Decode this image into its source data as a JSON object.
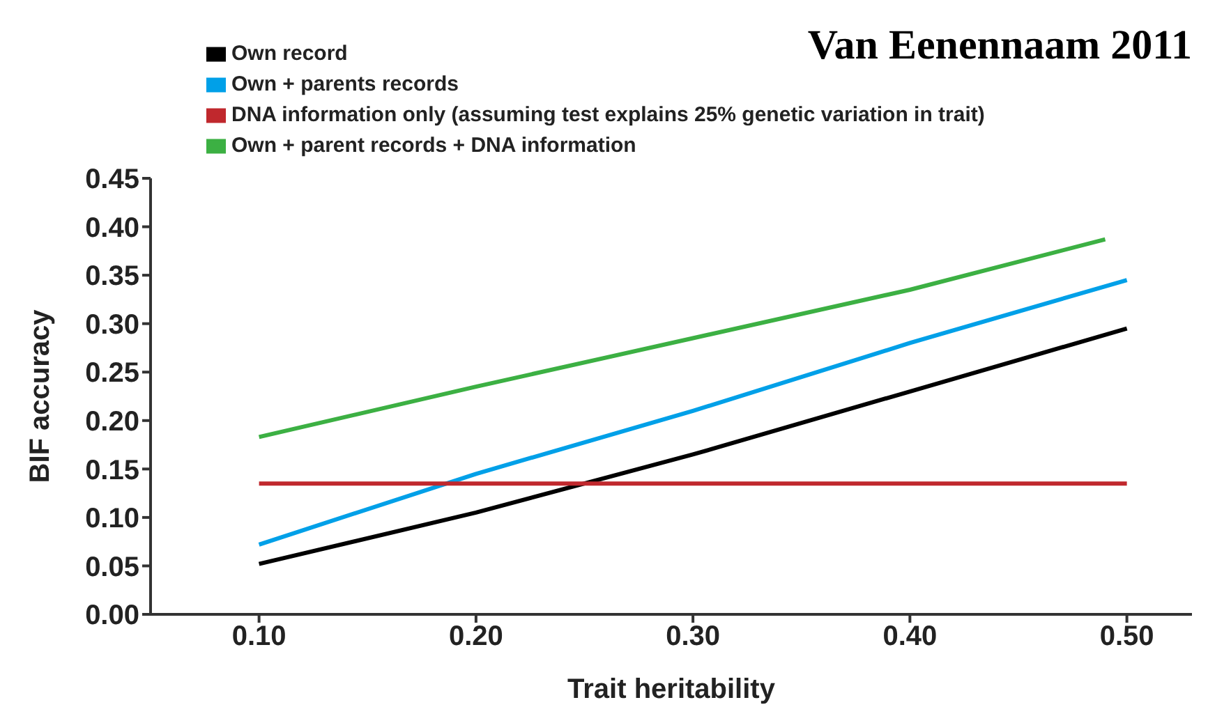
{
  "chart_data": {
    "type": "line",
    "title": "Van Eenennaam  2011",
    "xlabel": "Trait heritability",
    "ylabel": "BIF accuracy",
    "x": [
      0.1,
      0.2,
      0.3,
      0.4,
      0.5
    ],
    "series": [
      {
        "name": "Own record",
        "color": "#000000",
        "values": [
          0.052,
          0.105,
          0.165,
          0.23,
          0.295
        ]
      },
      {
        "name": "Own + parents records",
        "color": "#00a0e8",
        "values": [
          0.072,
          0.145,
          0.21,
          0.28,
          0.345
        ]
      },
      {
        "name": "DNA information only (assuming test explains 25% genetic variation in trait)",
        "color": "#c0282d",
        "values": [
          0.135,
          0.135,
          0.135,
          0.135,
          0.135
        ]
      },
      {
        "name": "Own + parent records + DNA information",
        "color": "#3cb043",
        "x": [
          0.1,
          0.2,
          0.3,
          0.4,
          0.49
        ],
        "values": [
          0.183,
          0.235,
          0.285,
          0.335,
          0.387
        ]
      }
    ],
    "xlim": [
      0.05,
      0.53
    ],
    "xticks": [
      {
        "value": 0.1,
        "label": "0.10"
      },
      {
        "value": 0.2,
        "label": "0.20"
      },
      {
        "value": 0.3,
        "label": "0.30"
      },
      {
        "value": 0.4,
        "label": "0.40"
      },
      {
        "value": 0.5,
        "label": "0.50"
      }
    ],
    "ylim": [
      0,
      0.45
    ],
    "yticks": [
      {
        "value": 0,
        "label": "0.00"
      },
      {
        "value": 0.05,
        "label": "0.05"
      },
      {
        "value": 0.1,
        "label": "0.10"
      },
      {
        "value": 0.15,
        "label": "0.15"
      },
      {
        "value": 0.2,
        "label": "0.20"
      },
      {
        "value": 0.25,
        "label": "0.25"
      },
      {
        "value": 0.3,
        "label": "0.30"
      },
      {
        "value": 0.35,
        "label": "0.35"
      },
      {
        "value": 0.4,
        "label": "0.40"
      },
      {
        "value": 0.45,
        "label": "0.45"
      }
    ],
    "grid": false,
    "legend": "top left",
    "marker": "none",
    "line_style": "solid"
  }
}
